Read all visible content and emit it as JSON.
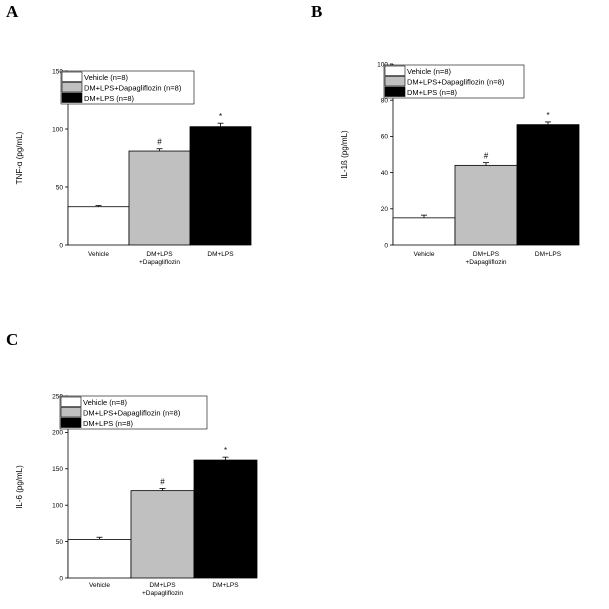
{
  "chart_data": [
    {
      "panel": "A",
      "type": "bar",
      "ylabel": "TNF-α (pg/mL)",
      "ylim": [
        0,
        150
      ],
      "yticks": [
        0,
        50,
        100,
        150
      ],
      "categories": [
        "Vehicle",
        "DM+LPS\n+Dapagliflozin",
        "DM+LPS"
      ],
      "values": [
        33,
        81,
        102
      ],
      "errors": [
        1,
        2,
        3
      ],
      "colors": [
        "#ffffff",
        "#c0c0c0",
        "#000000"
      ],
      "significance": [
        "",
        "#",
        "*"
      ],
      "legend": [
        "Vehicle (n=8)",
        "DM+LPS+Dapagliflozin (n=8)",
        "DM+LPS (n=8)"
      ]
    },
    {
      "panel": "B",
      "type": "bar",
      "ylabel": "IL-1ß (pg/mL)",
      "ylim": [
        0,
        100
      ],
      "yticks": [
        0,
        20,
        40,
        60,
        80,
        100
      ],
      "categories": [
        "Vehicle",
        "DM+LPS\n+Dapagliflozin",
        "DM+LPS"
      ],
      "values": [
        15,
        44,
        66.5
      ],
      "errors": [
        1.5,
        1.5,
        1.5
      ],
      "colors": [
        "#ffffff",
        "#c0c0c0",
        "#000000"
      ],
      "significance": [
        "",
        "#",
        "*"
      ],
      "legend": [
        "Vehicle (n=8)",
        "DM+LPS+Dapagliflozin (n=8)",
        "DM+LPS (n=8)"
      ]
    },
    {
      "panel": "C",
      "type": "bar",
      "ylabel": "IL-6 (pg/mL)",
      "ylim": [
        0,
        250
      ],
      "yticks": [
        0,
        50,
        100,
        150,
        200,
        250
      ],
      "categories": [
        "Vehicle",
        "DM+LPS\n+Dapagliflozin",
        "DM+LPS"
      ],
      "values": [
        53,
        120,
        162
      ],
      "errors": [
        3,
        3,
        4
      ],
      "colors": [
        "#ffffff",
        "#c0c0c0",
        "#000000"
      ],
      "significance": [
        "",
        "#",
        "*"
      ],
      "legend": [
        "Vehicle (n=8)",
        "DM+LPS+Dapagliflozin (n=8)",
        "DM+LPS (n=8)"
      ]
    }
  ]
}
